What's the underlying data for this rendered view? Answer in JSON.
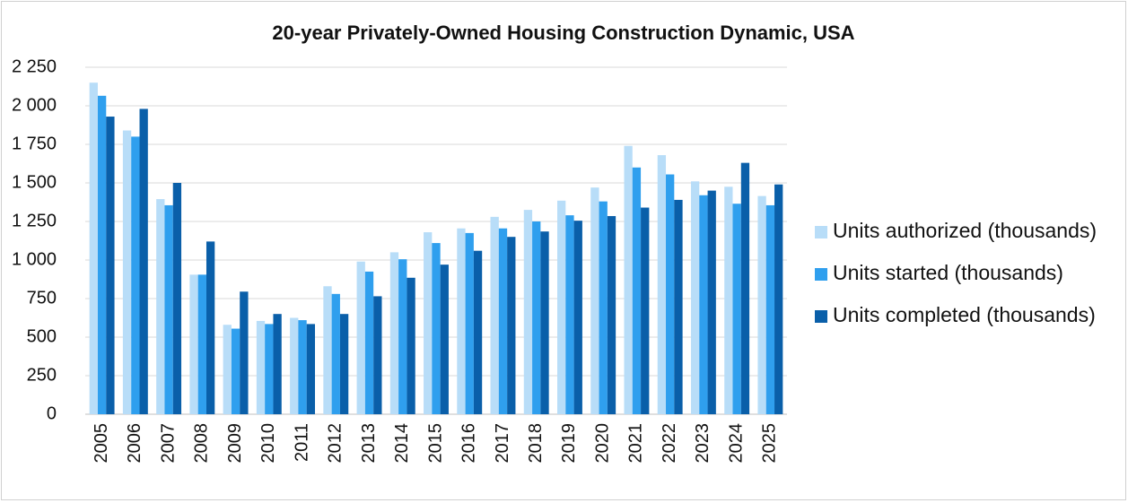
{
  "chart_data": {
    "type": "bar",
    "title": "20-year Privately-Owned Housing Construction Dynamic, USA",
    "categories": [
      "2005",
      "2006",
      "2007",
      "2008",
      "2009",
      "2010",
      "2011",
      "2012",
      "2013",
      "2014",
      "2015",
      "2016",
      "2017",
      "2018",
      "2019",
      "2020",
      "2021",
      "2022",
      "2023",
      "2024",
      "2025"
    ],
    "series": [
      {
        "name": "Units authorized (thousands)",
        "color": "#b8ddf8",
        "values": [
          2150,
          1840,
          1395,
          905,
          580,
          605,
          625,
          830,
          990,
          1050,
          1180,
          1205,
          1280,
          1325,
          1385,
          1470,
          1740,
          1680,
          1510,
          1475,
          1415
        ]
      },
      {
        "name": "Units started (thousands)",
        "color": "#2f9fee",
        "values": [
          2065,
          1800,
          1355,
          905,
          555,
          585,
          610,
          780,
          925,
          1005,
          1110,
          1175,
          1205,
          1250,
          1290,
          1380,
          1600,
          1555,
          1420,
          1365,
          1355
        ]
      },
      {
        "name": "Units completed (thousands)",
        "color": "#0a5fa9",
        "values": [
          1930,
          1980,
          1500,
          1120,
          795,
          650,
          585,
          650,
          765,
          885,
          970,
          1060,
          1150,
          1185,
          1255,
          1285,
          1340,
          1390,
          1450,
          1630,
          1490
        ]
      }
    ],
    "ylim": [
      0,
      2250
    ],
    "yticks": [
      0,
      250,
      500,
      750,
      {
        "value": 1000,
        "label": "1 000"
      },
      {
        "value": 1250,
        "label": "1 250"
      },
      {
        "value": 1500,
        "label": "1 500"
      },
      {
        "value": 1750,
        "label": "1 750"
      },
      {
        "value": 2000,
        "label": "2 000"
      },
      {
        "value": 2250,
        "label": "2 250"
      }
    ],
    "grid": true,
    "legend": "right"
  }
}
